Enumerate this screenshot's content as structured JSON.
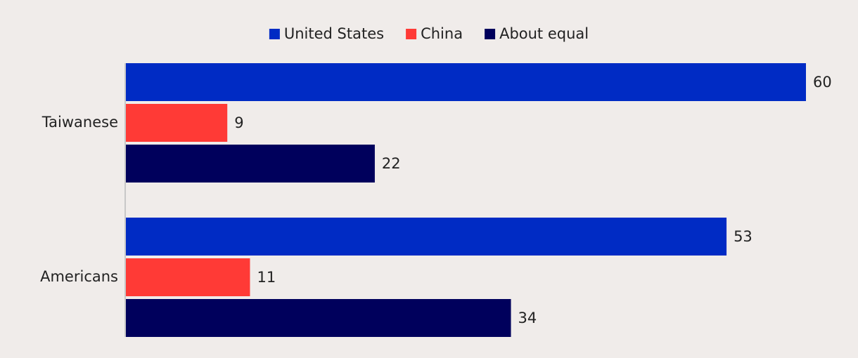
{
  "chart_data": {
    "type": "hbar",
    "categories": [
      "Taiwanese",
      "Americans"
    ],
    "series": [
      {
        "name": "United States",
        "color": "#002bc4",
        "values": [
          60,
          53
        ]
      },
      {
        "name": "China",
        "color": "#ff3a36",
        "values": [
          9,
          11
        ]
      },
      {
        "name": "About equal",
        "color": "#00005c",
        "values": [
          22,
          34
        ]
      }
    ],
    "xlim": [
      0,
      60
    ],
    "legend": "top"
  }
}
